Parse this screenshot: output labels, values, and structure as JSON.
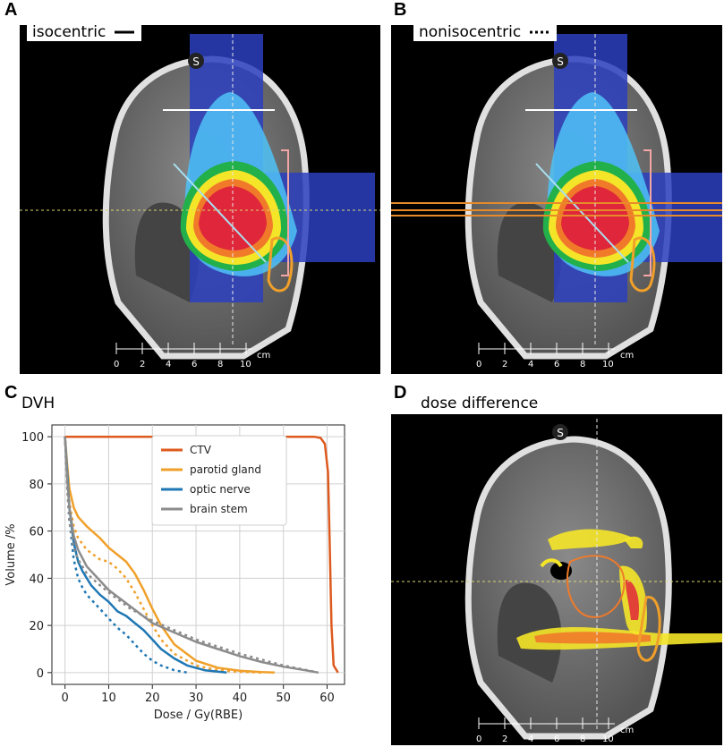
{
  "panels": {
    "a": {
      "letter": "A",
      "title": "isocentric"
    },
    "b": {
      "letter": "B",
      "title": "nonisocentric"
    },
    "c": {
      "letter": "C",
      "title": "DVH"
    },
    "d": {
      "letter": "D",
      "title": "dose difference"
    }
  },
  "ct": {
    "orientation_label": "S",
    "scale_unit": "cm",
    "scale_ticks": [
      "0",
      "2",
      "4",
      "6",
      "8",
      "10"
    ]
  },
  "chart_data": {
    "type": "line",
    "title": "DVH",
    "xlabel": "Dose / Gy(RBE)",
    "ylabel": "Volume /%",
    "xlim": [
      -3,
      64
    ],
    "ylim": [
      -5,
      105
    ],
    "xticks": [
      0,
      10,
      20,
      30,
      40,
      50,
      60
    ],
    "yticks": [
      0,
      20,
      40,
      60,
      80,
      100
    ],
    "grid": true,
    "legend": "top-center",
    "series": [
      {
        "name": "CTV",
        "color": "#dd5a1f",
        "style": "solid",
        "x": [
          0,
          2,
          50,
          57,
          58.5,
          59.5,
          60.2,
          60.6,
          61,
          61.5,
          62.5
        ],
        "y": [
          100,
          100,
          100,
          100,
          99.5,
          97,
          85,
          55,
          20,
          3,
          0
        ]
      },
      {
        "name": "parotid gland",
        "color": "#f0a02a",
        "style": "solid",
        "x": [
          0,
          0.5,
          1,
          2,
          3,
          5,
          8,
          10,
          12,
          14,
          16,
          18,
          20,
          22,
          25,
          30,
          35,
          40,
          45,
          48
        ],
        "y": [
          100,
          88,
          78,
          70,
          66,
          62,
          57,
          53,
          50,
          47,
          42,
          35,
          27,
          20,
          12,
          5,
          2,
          0.8,
          0.2,
          0
        ]
      },
      {
        "name": "parotid gland",
        "color": "#f0a02a",
        "style": "dotted",
        "x": [
          0,
          0.5,
          1,
          2,
          3,
          5,
          8,
          10,
          12,
          14,
          16,
          18,
          20,
          22,
          25,
          30,
          35,
          40,
          45
        ],
        "y": [
          100,
          85,
          72,
          62,
          57,
          52,
          48,
          47,
          44,
          40,
          34,
          27,
          20,
          14,
          8,
          3,
          1,
          0.3,
          0
        ]
      },
      {
        "name": "optic nerve",
        "color": "#1f77b4",
        "style": "solid",
        "x": [
          0,
          0.5,
          1,
          2,
          3,
          4,
          5,
          6,
          8,
          10,
          12,
          14,
          16,
          18,
          20,
          22,
          25,
          28,
          32,
          37
        ],
        "y": [
          100,
          85,
          70,
          55,
          47,
          43,
          40,
          37,
          33,
          30,
          26,
          24,
          21,
          18,
          14,
          10,
          6,
          3,
          1,
          0
        ]
      },
      {
        "name": "optic nerve",
        "color": "#1f77b4",
        "style": "dotted",
        "x": [
          0,
          0.5,
          1,
          2,
          3,
          4,
          5,
          6,
          8,
          10,
          12,
          14,
          16,
          18,
          20,
          22,
          25,
          28
        ],
        "y": [
          100,
          80,
          65,
          48,
          40,
          36,
          33,
          31,
          27,
          23,
          19,
          16,
          12,
          8,
          5,
          3,
          1,
          0
        ]
      },
      {
        "name": "brain stem",
        "color": "#8c8c8c",
        "style": "solid",
        "x": [
          0,
          0.5,
          1,
          2,
          3,
          5,
          8,
          10,
          15,
          20,
          25,
          30,
          35,
          40,
          45,
          50,
          55,
          58
        ],
        "y": [
          100,
          82,
          70,
          58,
          52,
          45,
          39,
          35,
          28,
          21,
          17,
          13,
          10,
          7,
          4.5,
          2.5,
          1,
          0
        ]
      },
      {
        "name": "brain stem",
        "color": "#8c8c8c",
        "style": "dotted",
        "x": [
          0,
          0.5,
          1,
          2,
          3,
          5,
          8,
          10,
          15,
          20,
          25,
          30,
          35,
          40,
          45,
          50,
          55,
          58
        ],
        "y": [
          100,
          78,
          64,
          53,
          48,
          42,
          37,
          34,
          27,
          22,
          18,
          14,
          11,
          8,
          5.5,
          3,
          1.2,
          0
        ]
      }
    ],
    "legend_entries": [
      {
        "name": "CTV",
        "color": "#dd5a1f"
      },
      {
        "name": "parotid gland",
        "color": "#f0a02a"
      },
      {
        "name": "optic nerve",
        "color": "#1f77b4"
      },
      {
        "name": "brain stem",
        "color": "#8c8c8c"
      }
    ]
  }
}
